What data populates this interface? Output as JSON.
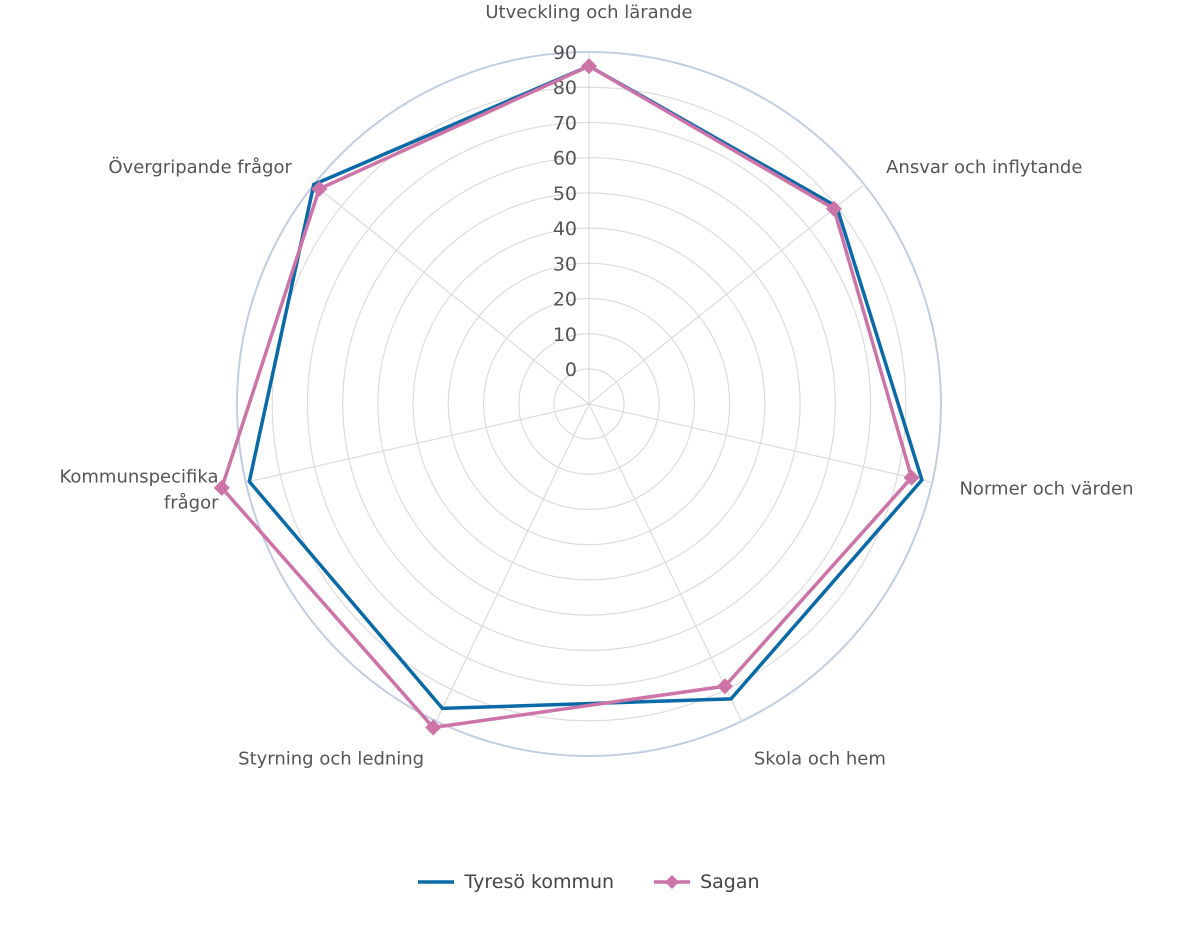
{
  "chart_data": {
    "type": "radar",
    "title": "",
    "categories": [
      "Utveckling och lärande",
      "Ansvar och inflytande",
      "Normer och värden",
      "Skola och hem",
      "Styrning och ledning",
      "Kommunspecifika frågor",
      "Övergripande frågor"
    ],
    "rlim": [
      0,
      90
    ],
    "ticks": [
      "0",
      "10",
      "20",
      "30",
      "40",
      "50",
      "60",
      "70",
      "80",
      "90"
    ],
    "series": [
      {
        "name": "Tyresö kommun",
        "color": "#0a6aa8",
        "marker": "none",
        "values": [
          86,
          80,
          87,
          83,
          86,
          89,
          90
        ]
      },
      {
        "name": "Sagan",
        "color": "#cc74a8",
        "marker": "diamond",
        "values": [
          86,
          79,
          84,
          79,
          92,
          97,
          88
        ]
      }
    ],
    "legend_position": "bottom"
  }
}
